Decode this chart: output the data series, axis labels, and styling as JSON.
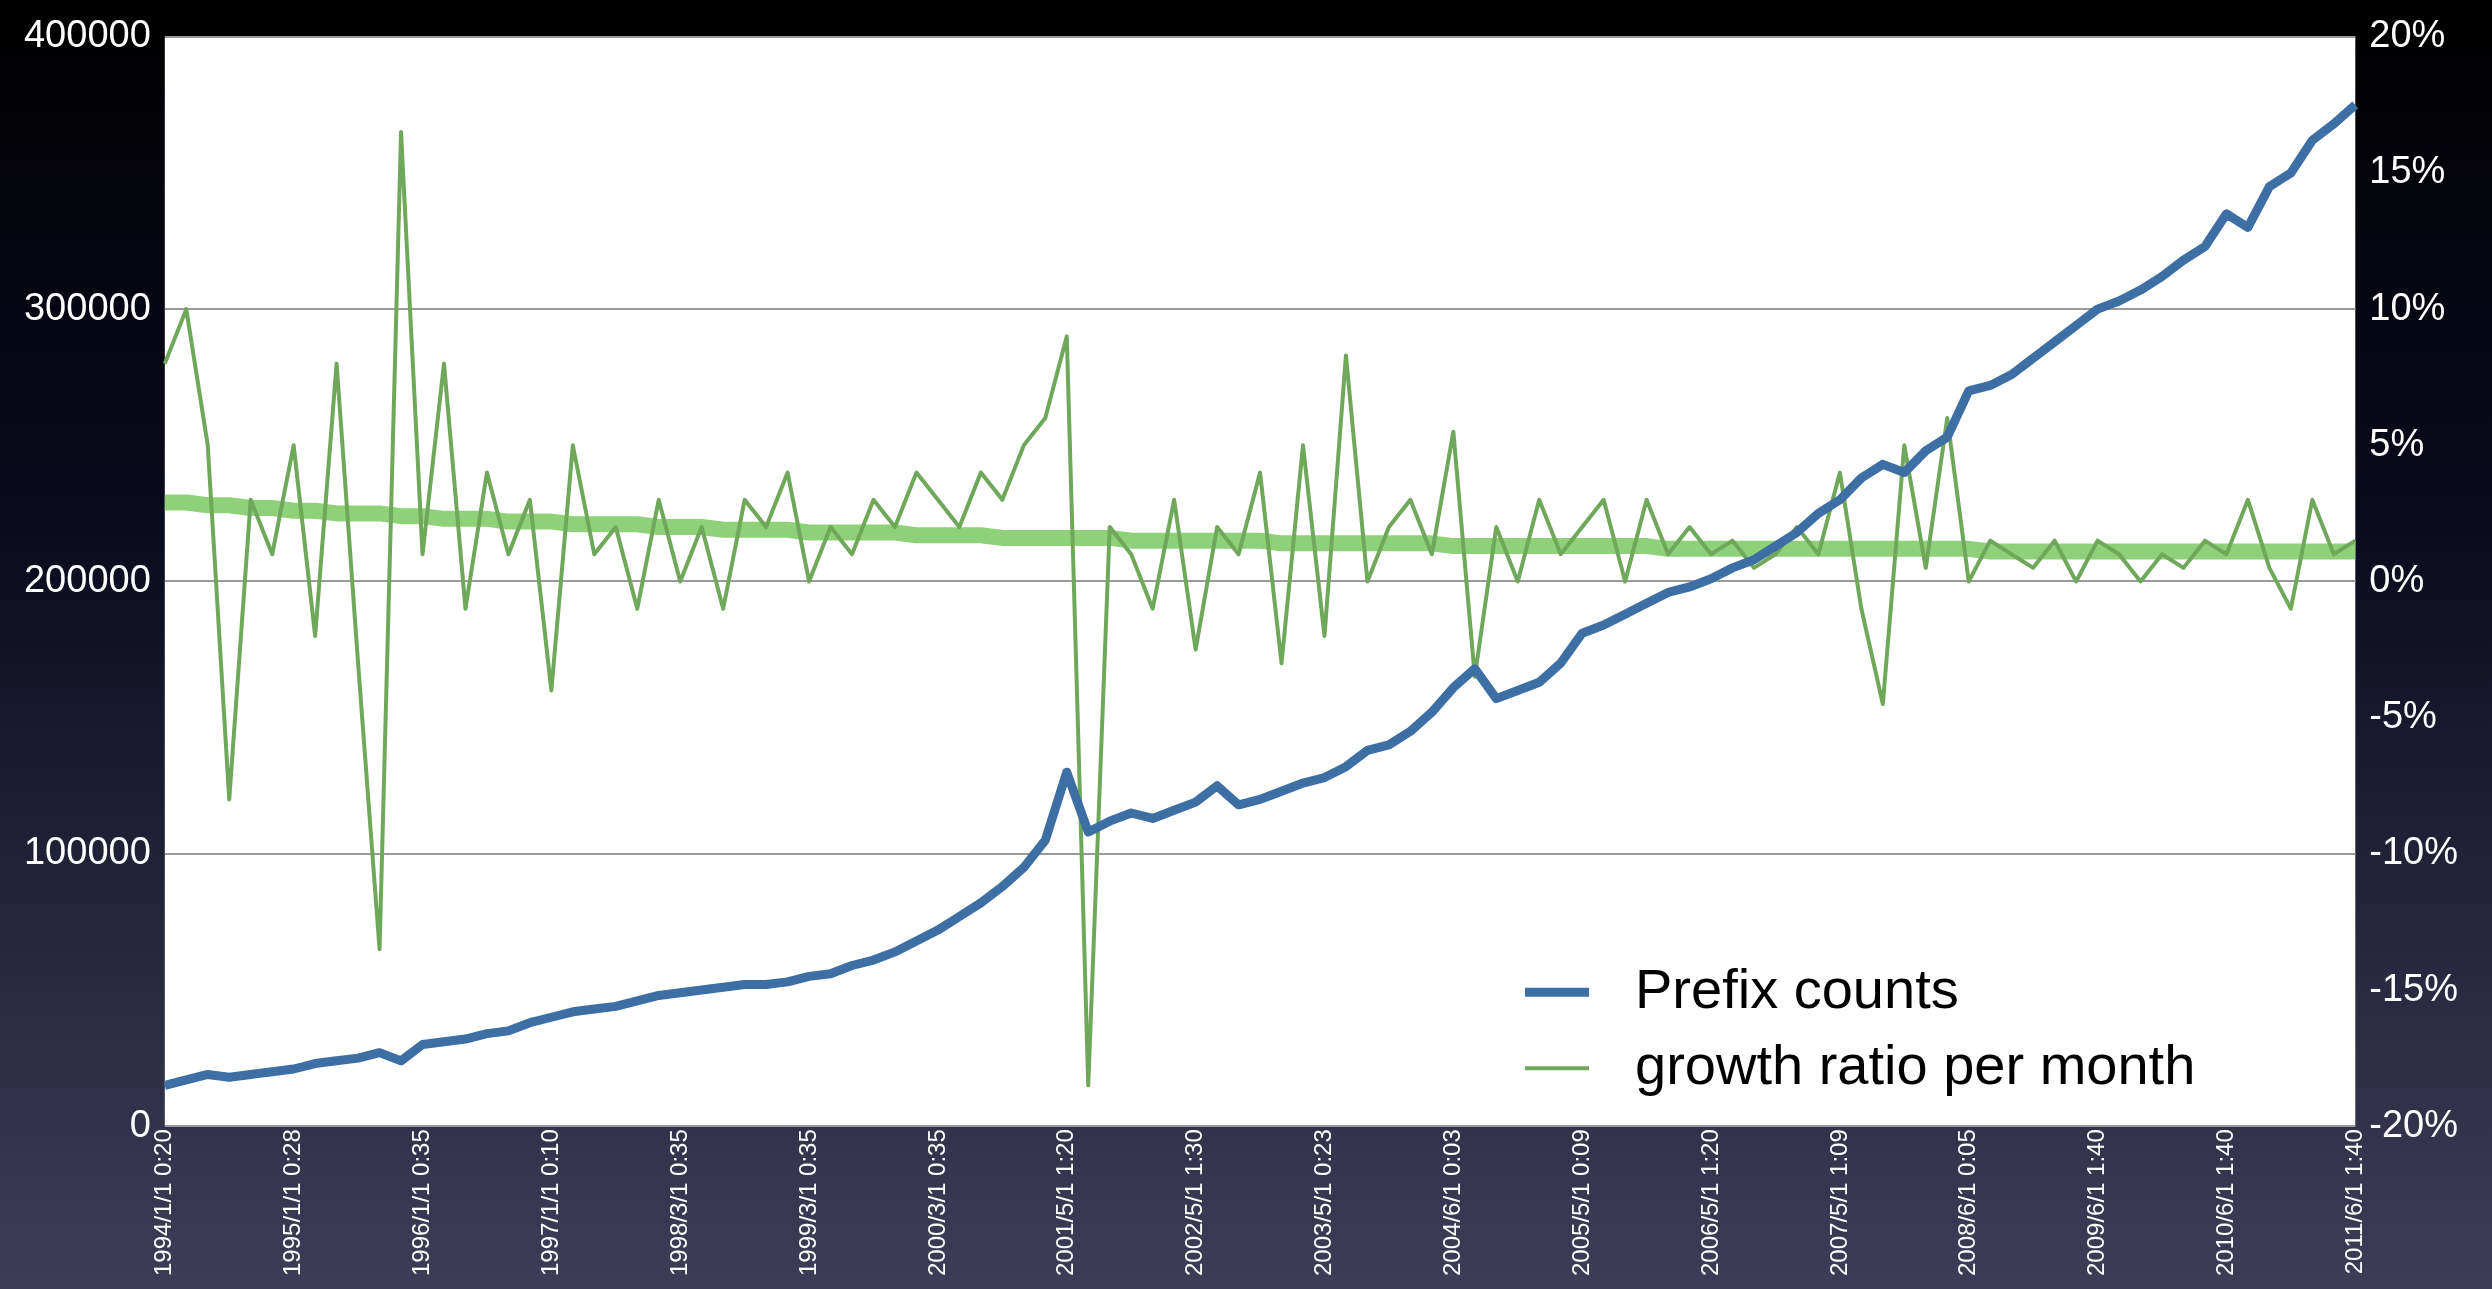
{
  "chart_data": {
    "type": "line",
    "categories": [
      "1994/1/1 0:20",
      null,
      null,
      null,
      null,
      null,
      "1995/1/1 0:28",
      null,
      null,
      null,
      null,
      null,
      "1996/1/1 0:35",
      null,
      null,
      null,
      null,
      null,
      "1997/1/1 0:10",
      null,
      null,
      null,
      null,
      null,
      "1998/3/1 0:35",
      null,
      null,
      null,
      null,
      null,
      "1999/3/1 0:35",
      null,
      null,
      null,
      null,
      null,
      "2000/3/1 0:35",
      null,
      null,
      null,
      null,
      null,
      "2001/5/1 1:20",
      null,
      null,
      null,
      null,
      null,
      "2002/5/1 1:30",
      null,
      null,
      null,
      null,
      null,
      "2003/5/1 0:23",
      null,
      null,
      null,
      null,
      null,
      "2004/6/1 0:03",
      null,
      null,
      null,
      null,
      null,
      "2005/5/1 0:09",
      null,
      null,
      null,
      null,
      null,
      "2006/5/1 1:20",
      null,
      null,
      null,
      null,
      null,
      "2007/5/1 1:09",
      null,
      null,
      null,
      null,
      null,
      "2008/6/1 0:05",
      null,
      null,
      null,
      null,
      null,
      "2009/6/1 1:40",
      null,
      null,
      null,
      null,
      null,
      "2010/6/1 1:40",
      null,
      null,
      null,
      null,
      null,
      "2011/6/1 1:40"
    ],
    "series": [
      {
        "name": "Prefix counts",
        "color": "#3d6fa5",
        "axis": "y",
        "values": [
          15000,
          17000,
          19000,
          18000,
          19000,
          20000,
          21000,
          23000,
          24000,
          25000,
          27000,
          24000,
          30000,
          31000,
          32000,
          34000,
          35000,
          38000,
          40000,
          42000,
          43000,
          44000,
          46000,
          48000,
          49000,
          50000,
          51000,
          52000,
          52000,
          53000,
          55000,
          56000,
          59000,
          61000,
          64000,
          68000,
          72000,
          77000,
          82000,
          88000,
          95000,
          105000,
          130000,
          108000,
          112000,
          115000,
          113000,
          116000,
          119000,
          125000,
          118000,
          120000,
          123000,
          126000,
          128000,
          132000,
          138000,
          140000,
          145000,
          152000,
          161000,
          168000,
          157000,
          160000,
          163000,
          170000,
          181000,
          184000,
          188000,
          192000,
          196000,
          198000,
          201000,
          205000,
          208000,
          213000,
          218000,
          225000,
          230000,
          238000,
          243000,
          240000,
          248000,
          253000,
          270000,
          272000,
          276000,
          282000,
          288000,
          294000,
          300000,
          303000,
          307000,
          312000,
          318000,
          323000,
          335000,
          330000,
          345000,
          350000,
          362000,
          368000,
          375000
        ]
      },
      {
        "name": "growth ratio per month",
        "color": "#6fa85a",
        "axis": "y2",
        "values": [
          8,
          10,
          5,
          -8,
          3,
          1,
          5,
          -2,
          8,
          -3,
          -13.5,
          16.5,
          1,
          8,
          -1,
          4,
          1,
          3,
          -4,
          5,
          1,
          2,
          -1,
          3,
          0,
          2,
          -1,
          3,
          2,
          4,
          0,
          2,
          1,
          3,
          2,
          4,
          3,
          2,
          4,
          3,
          5,
          6,
          9,
          -18.5,
          2,
          1,
          -1,
          3,
          -2.5,
          2,
          1,
          4,
          -3,
          5,
          -2,
          8.3,
          0,
          2,
          3,
          1,
          5.5,
          -3.5,
          2,
          0,
          3,
          1,
          2,
          3,
          0,
          3,
          1,
          2,
          1,
          1.5,
          0.5,
          1,
          2,
          1,
          4,
          -1,
          -4.5,
          5,
          0.5,
          6,
          0,
          1.5,
          1,
          0.5,
          1.5,
          0,
          1.5,
          1,
          0,
          1,
          0.5,
          1.5,
          1,
          3,
          0.5,
          -1,
          3,
          1,
          1.5
        ]
      },
      {
        "type": "line",
        "color": "#8ed178",
        "axis": "y2",
        "values": [
          2.9,
          2.9,
          2.8,
          2.8,
          2.7,
          2.7,
          2.6,
          2.6,
          2.5,
          2.5,
          2.5,
          2.4,
          2.4,
          2.3,
          2.3,
          2.3,
          2.2,
          2.2,
          2.2,
          2.1,
          2.1,
          2.1,
          2.1,
          2.0,
          2.0,
          2.0,
          1.9,
          1.9,
          1.9,
          1.9,
          1.8,
          1.8,
          1.8,
          1.8,
          1.8,
          1.7,
          1.7,
          1.7,
          1.7,
          1.6,
          1.6,
          1.6,
          1.6,
          1.6,
          1.6,
          1.5,
          1.5,
          1.5,
          1.5,
          1.5,
          1.5,
          1.5,
          1.4,
          1.4,
          1.4,
          1.4,
          1.4,
          1.4,
          1.4,
          1.4,
          1.3,
          1.3,
          1.3,
          1.3,
          1.3,
          1.3,
          1.3,
          1.3,
          1.3,
          1.3,
          1.2,
          1.2,
          1.2,
          1.2,
          1.2,
          1.2,
          1.2,
          1.2,
          1.2,
          1.2,
          1.2,
          1.2,
          1.2,
          1.2,
          1.2,
          1.1,
          1.1,
          1.1,
          1.1,
          1.1,
          1.1,
          1.1,
          1.1,
          1.1,
          1.1,
          1.1,
          1.1,
          1.1,
          1.1,
          1.1,
          1.1,
          1.1,
          1.1
        ]
      }
    ],
    "ylim": [
      0,
      400000
    ],
    "yticks": [
      0,
      100000,
      200000,
      300000,
      400000
    ],
    "y2lim": [
      -20,
      20
    ],
    "y2ticks": [
      {
        "value": -20,
        "label": "-20%"
      },
      {
        "value": -15,
        "label": "-15%"
      },
      {
        "value": -10,
        "label": "-10%"
      },
      {
        "value": -5,
        "label": "-5%"
      },
      {
        "value": 0,
        "label": "0%"
      },
      {
        "value": 5,
        "label": "5%"
      },
      {
        "value": 10,
        "label": "10%"
      },
      {
        "value": 15,
        "label": "15%"
      },
      {
        "value": 20,
        "label": "20%"
      }
    ],
    "grid": "y",
    "legend": "bottom right",
    "marker": "none",
    "line_style": "solid"
  }
}
